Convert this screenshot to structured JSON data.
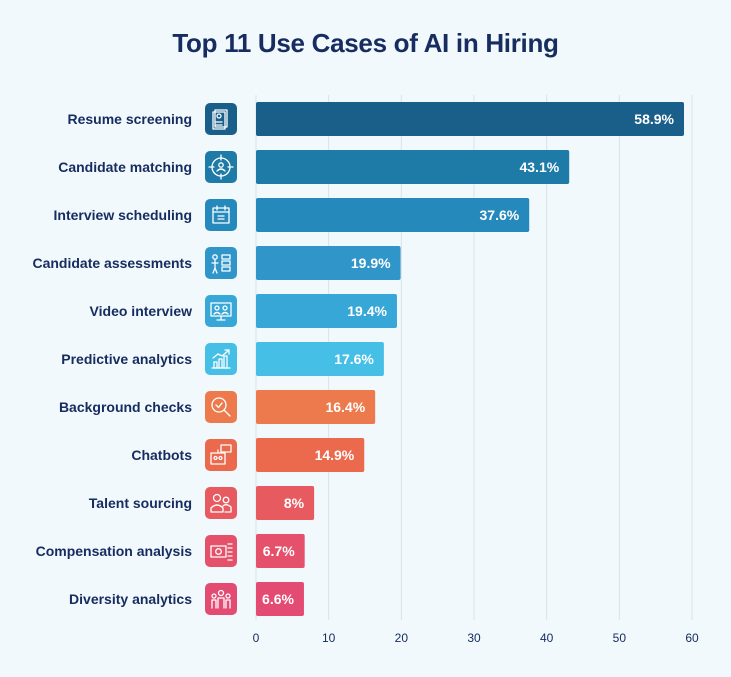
{
  "chart_data": {
    "type": "bar",
    "orientation": "horizontal",
    "title": "Top 11 Use Cases of AI in Hiring",
    "xlabel": "",
    "ylabel": "",
    "xlim": [
      0,
      60
    ],
    "x_ticks": [
      "0",
      "10",
      "20",
      "30",
      "40",
      "50",
      "60"
    ],
    "grid": true,
    "legend": "none",
    "categories": [
      "Resume screening",
      "Candidate matching",
      "Interview scheduling",
      "Candidate assessments",
      "Video interview",
      "Predictive analytics",
      "Background checks",
      "Chatbots",
      "Talent sourcing",
      "Compensation analysis",
      "Diversity analytics"
    ],
    "values": [
      58.9,
      43.1,
      37.6,
      19.9,
      19.4,
      17.6,
      16.4,
      14.9,
      8,
      6.7,
      6.6
    ],
    "value_labels": [
      "58.9%",
      "43.1%",
      "37.6%",
      "19.9%",
      "19.4%",
      "17.6%",
      "16.4%",
      "14.9%",
      "8%",
      "6.7%",
      "6.6%"
    ],
    "colors": [
      "#1a5f8a",
      "#1e7aa6",
      "#2589bb",
      "#3096c9",
      "#36a7d6",
      "#45bfe6",
      "#ec7a4c",
      "#eb6a4e",
      "#e65a60",
      "#e5506a",
      "#e34b72"
    ],
    "icons": [
      "resume-icon",
      "target-person-icon",
      "calendar-icon",
      "assessment-icon",
      "video-call-icon",
      "analytics-chart-icon",
      "magnifier-check-icon",
      "chatbot-icon",
      "people-icon",
      "money-icon",
      "diversity-group-icon"
    ]
  }
}
